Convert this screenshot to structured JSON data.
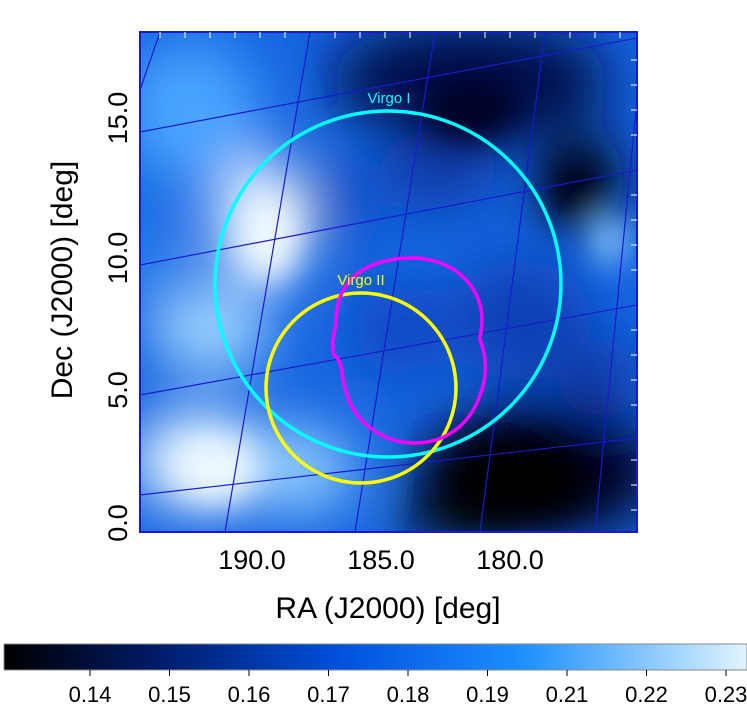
{
  "chart_data": {
    "type": "heatmap",
    "xlabel": "RA (J2000) [deg]",
    "ylabel": "Dec (J2000) [deg]",
    "x_ticks": [
      "190.0",
      "185.0",
      "180.0"
    ],
    "y_ticks": [
      "0.0",
      "5.0",
      "10.0",
      "15.0"
    ],
    "xlim": [
      195,
      175
    ],
    "ylim": [
      0,
      18
    ],
    "grid": true,
    "grid_color": "#1a1acc",
    "colormap": [
      "#000000",
      "#001a66",
      "#0050dd",
      "#1e90ff",
      "#e0f4ff"
    ],
    "colorbar": {
      "position": "bottom",
      "ticks": [
        "0.14",
        "0.15",
        "0.16",
        "0.17",
        "0.18",
        "0.19",
        "0.21",
        "0.22",
        "0.23"
      ]
    },
    "regions": [
      {
        "label": "Virgo I",
        "color": "#00ffff",
        "shape": "circle",
        "ra_center": 185.0,
        "dec_center": 8.5,
        "radius_deg": 6.0
      },
      {
        "label": "Virgo II",
        "color": "#ffff00",
        "shape": "circle",
        "ra_center": 186.2,
        "dec_center": 4.7,
        "radius_deg": 3.6
      },
      {
        "label": "",
        "color": "#ff00ff",
        "shape": "circle",
        "ra_center": 184.2,
        "dec_center": 6.7,
        "radius_deg": 3.6
      }
    ]
  }
}
